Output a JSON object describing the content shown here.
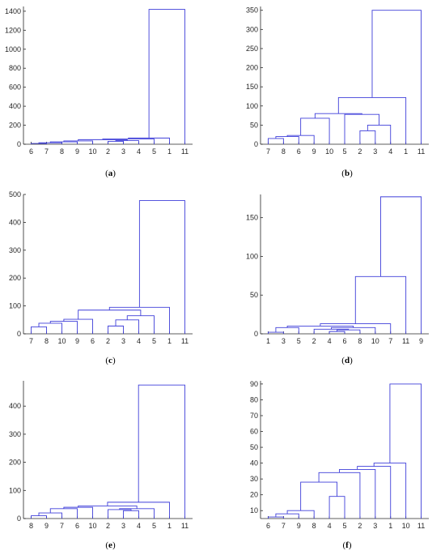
{
  "link_color": "#3f3fd9",
  "axis_color": "#262626",
  "chart_data": [
    {
      "type": "dendrogram",
      "panel_label": "a",
      "ylim": [
        0,
        1450
      ],
      "yticks": [
        0,
        200,
        400,
        600,
        800,
        1000,
        1200,
        1400
      ],
      "leaf_order": [
        "6",
        "7",
        "8",
        "9",
        "10",
        "2",
        "3",
        "4",
        "5",
        "1",
        "11"
      ],
      "links": [
        {
          "left": "6",
          "right": "7",
          "height": 8
        },
        {
          "left": "n1",
          "right": "8",
          "height": 15
        },
        {
          "left": "n2",
          "right": "9",
          "height": 25
        },
        {
          "left": "n3",
          "right": "10",
          "height": 35
        },
        {
          "left": "2",
          "right": "3",
          "height": 30
        },
        {
          "left": "n5",
          "right": "4",
          "height": 38
        },
        {
          "left": "n4",
          "right": "n6",
          "height": 48
        },
        {
          "left": "n7",
          "right": "5",
          "height": 55
        },
        {
          "left": "n8",
          "right": "1",
          "height": 65
        },
        {
          "left": "n9",
          "right": "11",
          "height": 1420
        }
      ]
    },
    {
      "type": "dendrogram",
      "panel_label": "b",
      "ylim": [
        0,
        360
      ],
      "yticks": [
        0,
        50,
        100,
        150,
        200,
        250,
        300,
        350
      ],
      "leaf_order": [
        "7",
        "8",
        "6",
        "9",
        "10",
        "5",
        "2",
        "3",
        "4",
        "1",
        "11"
      ],
      "links": [
        {
          "left": "7",
          "right": "8",
          "height": 15
        },
        {
          "left": "n1",
          "right": "6",
          "height": 20
        },
        {
          "left": "n2",
          "right": "9",
          "height": 23
        },
        {
          "left": "n3",
          "right": "10",
          "height": 68
        },
        {
          "left": "2",
          "right": "3",
          "height": 35
        },
        {
          "left": "n5",
          "right": "4",
          "height": 50
        },
        {
          "left": "5",
          "right": "n6",
          "height": 78
        },
        {
          "left": "n4",
          "right": "n7",
          "height": 80
        },
        {
          "left": "n8",
          "right": "1",
          "height": 122
        },
        {
          "left": "n9",
          "right": "11",
          "height": 350
        }
      ]
    },
    {
      "type": "dendrogram",
      "panel_label": "c",
      "ylim": [
        0,
        500
      ],
      "yticks": [
        0,
        100,
        200,
        300,
        400,
        500
      ],
      "leaf_order": [
        "7",
        "8",
        "10",
        "9",
        "6",
        "2",
        "3",
        "4",
        "5",
        "1",
        "11"
      ],
      "links": [
        {
          "left": "7",
          "right": "8",
          "height": 25
        },
        {
          "left": "n1",
          "right": "10",
          "height": 38
        },
        {
          "left": "n2",
          "right": "9",
          "height": 45
        },
        {
          "left": "n3",
          "right": "6",
          "height": 52
        },
        {
          "left": "2",
          "right": "3",
          "height": 28
        },
        {
          "left": "n5",
          "right": "4",
          "height": 50
        },
        {
          "left": "n6",
          "right": "5",
          "height": 65
        },
        {
          "left": "n4",
          "right": "n7",
          "height": 85
        },
        {
          "left": "n8",
          "right": "1",
          "height": 95
        },
        {
          "left": "n9",
          "right": "11",
          "height": 478
        }
      ]
    },
    {
      "type": "dendrogram",
      "panel_label": "d",
      "ylim": [
        0,
        180
      ],
      "yticks": [
        0,
        50,
        100,
        150
      ],
      "leaf_order": [
        "1",
        "3",
        "5",
        "2",
        "4",
        "6",
        "8",
        "10",
        "7",
        "11",
        "9"
      ],
      "links": [
        {
          "left": "1",
          "right": "3",
          "height": 2
        },
        {
          "left": "n1",
          "right": "5",
          "height": 8
        },
        {
          "left": "4",
          "right": "6",
          "height": 3
        },
        {
          "left": "n3",
          "right": "8",
          "height": 5
        },
        {
          "left": "2",
          "right": "n4",
          "height": 6
        },
        {
          "left": "n5",
          "right": "10",
          "height": 8
        },
        {
          "left": "n2",
          "right": "n6",
          "height": 10
        },
        {
          "left": "n7",
          "right": "7",
          "height": 13
        },
        {
          "left": "n8",
          "right": "11",
          "height": 74
        },
        {
          "left": "n9",
          "right": "9",
          "height": 177
        }
      ]
    },
    {
      "type": "dendrogram",
      "panel_label": "e",
      "ylim": [
        0,
        490
      ],
      "yticks": [
        0,
        100,
        200,
        300,
        400
      ],
      "leaf_order": [
        "8",
        "9",
        "7",
        "6",
        "10",
        "2",
        "3",
        "4",
        "5",
        "1",
        "11"
      ],
      "links": [
        {
          "left": "8",
          "right": "9",
          "height": 10
        },
        {
          "left": "n1",
          "right": "7",
          "height": 20
        },
        {
          "left": "n2",
          "right": "6",
          "height": 35
        },
        {
          "left": "n3",
          "right": "10",
          "height": 40
        },
        {
          "left": "3",
          "right": "4",
          "height": 28
        },
        {
          "left": "2",
          "right": "n5",
          "height": 32
        },
        {
          "left": "n6",
          "right": "5",
          "height": 35
        },
        {
          "left": "n4",
          "right": "n7",
          "height": 45
        },
        {
          "left": "n8",
          "right": "1",
          "height": 58
        },
        {
          "left": "n9",
          "right": "11",
          "height": 475
        }
      ]
    },
    {
      "type": "dendrogram",
      "panel_label": "f",
      "ylim": [
        5,
        92
      ],
      "yticks": [
        10,
        20,
        30,
        40,
        50,
        60,
        70,
        80,
        90
      ],
      "leaf_order": [
        "6",
        "7",
        "9",
        "8",
        "4",
        "5",
        "2",
        "3",
        "1",
        "10",
        "11"
      ],
      "links": [
        {
          "left": "6",
          "right": "7",
          "height": 6
        },
        {
          "left": "n1",
          "right": "9",
          "height": 8
        },
        {
          "left": "n2",
          "right": "8",
          "height": 10
        },
        {
          "left": "4",
          "right": "5",
          "height": 19
        },
        {
          "left": "n3",
          "right": "n4",
          "height": 28
        },
        {
          "left": "n5",
          "right": "2",
          "height": 34
        },
        {
          "left": "n6",
          "right": "3",
          "height": 36
        },
        {
          "left": "n7",
          "right": "1",
          "height": 38
        },
        {
          "left": "n8",
          "right": "10",
          "height": 40
        },
        {
          "left": "n9",
          "right": "11",
          "height": 90
        }
      ]
    }
  ]
}
